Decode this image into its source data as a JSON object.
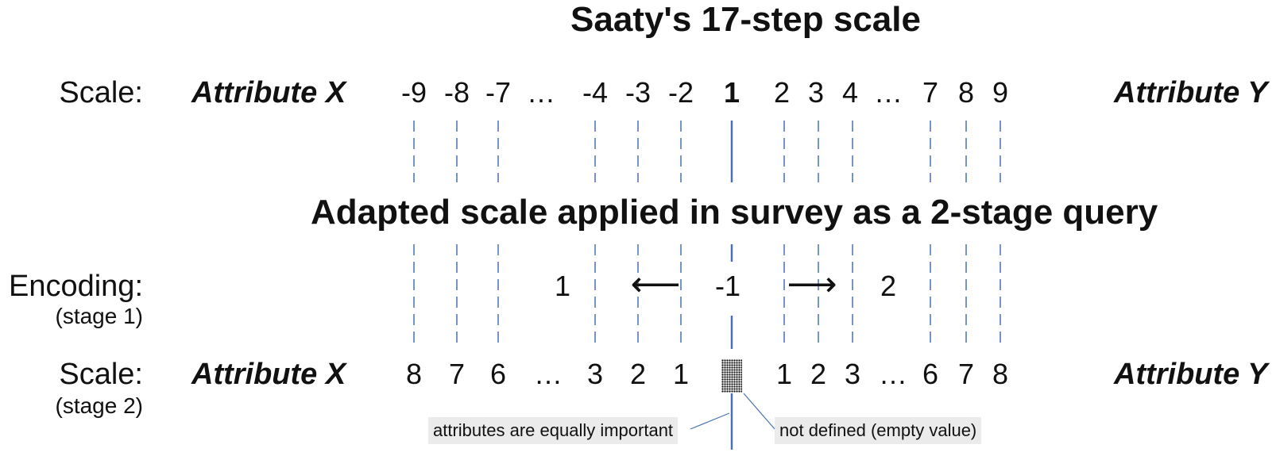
{
  "title_top": "Saaty's 17-step scale",
  "title_mid": "Adapted scale applied in survey as a 2-stage query",
  "row1": {
    "label": "Scale:",
    "attr_x": "Attribute X",
    "attr_y": "Attribute Y",
    "ticks": [
      "-9",
      "-8",
      "-7",
      "…",
      "-4",
      "-3",
      "-2",
      "1",
      "2",
      "3",
      "4",
      "…",
      "7",
      "8",
      "9"
    ]
  },
  "row2": {
    "label": "Encoding:",
    "sublabel": "(stage 1)",
    "left_code": "1",
    "center_code": "-1",
    "right_code": "2",
    "left_arrow": "⟵",
    "right_arrow": "⟶"
  },
  "row3": {
    "label": "Scale:",
    "sublabel": "(stage 2)",
    "attr_x": "Attribute X",
    "attr_y": "Attribute Y",
    "ticks": [
      "8",
      "7",
      "6",
      "…",
      "3",
      "2",
      "1",
      "1",
      "2",
      "3",
      "…",
      "6",
      "7",
      "8"
    ]
  },
  "annotations": {
    "equal": "attributes are equally important",
    "undefined": "not defined (empty value)"
  },
  "colors": {
    "line": "#4a72b0",
    "annotation_bg": "#ebebeb"
  }
}
